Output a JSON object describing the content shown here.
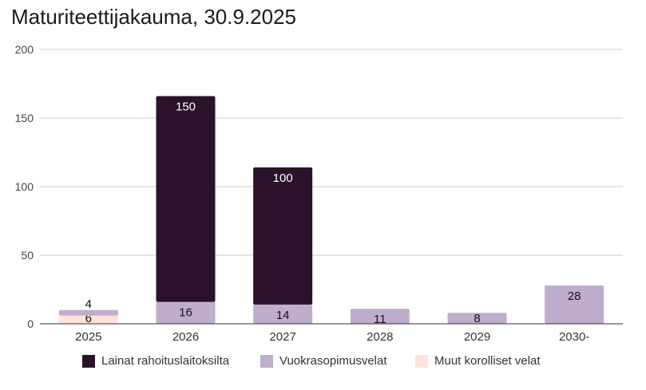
{
  "chart_data": {
    "type": "bar",
    "stacked": true,
    "title": "Maturiteettijakauma, 30.9.2025",
    "categories": [
      "2025",
      "2026",
      "2027",
      "2028",
      "2029",
      "2030-"
    ],
    "series": [
      {
        "name": "Muut korolliset velat",
        "color": "#fde3d9",
        "values": [
          6,
          0,
          0,
          0,
          0,
          0
        ]
      },
      {
        "name": "Vuokrasopimusvelat",
        "color": "#bfaecb",
        "values": [
          4,
          16,
          14,
          11,
          8,
          28
        ]
      },
      {
        "name": "Lainat rahoituslaitoksilta",
        "color": "#2b1129",
        "values": [
          0,
          150,
          100,
          0,
          0,
          0
        ]
      }
    ],
    "ylim": [
      0,
      200
    ],
    "yticks": [
      0,
      50,
      100,
      150,
      200
    ],
    "grid": true,
    "legend_position": "bottom",
    "legend_order": [
      "Lainat rahoituslaitoksilta",
      "Vuokrasopimusvelat",
      "Muut korolliset velat"
    ]
  }
}
